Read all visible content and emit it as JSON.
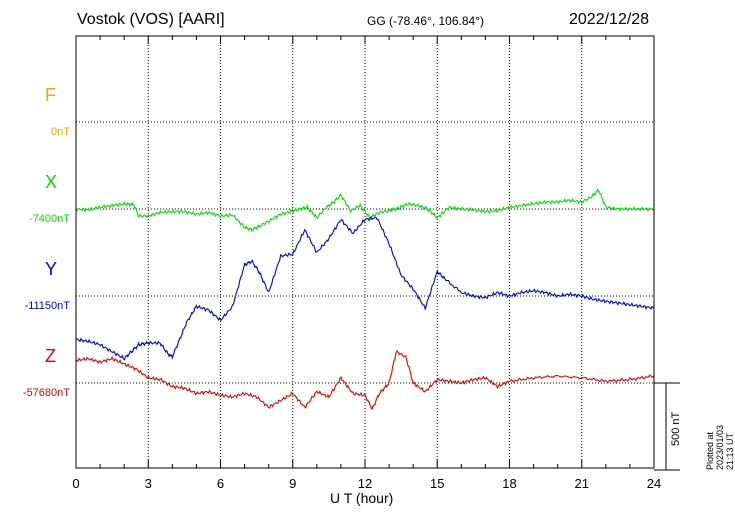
{
  "header": {
    "station": "Vostok (VOS)  [AARI]",
    "coordinates": "GG (-78.46°, 106.84°)",
    "date": "2022/12/28"
  },
  "footer": {
    "plotted": "Plotted at 2023/01/03 21:13 UT",
    "scale_label": "500 nT"
  },
  "chart_data": {
    "type": "line",
    "xlabel": "U T (hour)",
    "xlim": [
      0,
      24
    ],
    "xticks": [
      0,
      3,
      6,
      9,
      12,
      15,
      18,
      21,
      24
    ],
    "scale_bar_nT": 500,
    "series": [
      {
        "name": "F",
        "baseline": "0nT",
        "baseline_value": 0,
        "color": "#f5a500",
        "values": []
      },
      {
        "name": "X",
        "baseline": "-7400nT",
        "baseline_value": -7400,
        "color": "#00e000",
        "x": [
          0,
          0.5,
          1.0,
          1.5,
          2.0,
          2.4,
          2.6,
          3.0,
          3.5,
          4.0,
          4.5,
          5.0,
          5.5,
          6.0,
          6.5,
          7.0,
          7.3,
          7.6,
          8.0,
          8.5,
          9.0,
          9.3,
          9.6,
          10.0,
          10.4,
          10.7,
          11.0,
          11.4,
          11.8,
          12.2,
          12.6,
          13.0,
          13.4,
          13.8,
          14.2,
          14.6,
          15.0,
          15.5,
          16.0,
          16.5,
          17.0,
          17.5,
          18.0,
          18.5,
          19.0,
          19.5,
          20.0,
          20.5,
          21.0,
          21.4,
          21.7,
          22.0,
          22.5,
          23.0,
          23.5,
          24.0
        ],
        "values": [
          0,
          -5,
          10,
          20,
          30,
          25,
          -40,
          -40,
          -20,
          -15,
          -15,
          -30,
          -20,
          -40,
          -35,
          -105,
          -120,
          -100,
          -70,
          -30,
          -10,
          0,
          10,
          -50,
          10,
          40,
          80,
          -10,
          20,
          -50,
          -20,
          -10,
          5,
          30,
          20,
          0,
          -50,
          10,
          0,
          -5,
          -15,
          -10,
          10,
          20,
          30,
          40,
          40,
          50,
          40,
          70,
          110,
          10,
          0,
          0,
          0,
          0
        ]
      },
      {
        "name": "Y",
        "baseline": "-11150nT",
        "baseline_value": -11150,
        "color": "#0000e6",
        "x": [
          0,
          0.5,
          1.0,
          1.5,
          2.0,
          2.3,
          2.6,
          3.0,
          3.5,
          3.8,
          4.0,
          4.3,
          4.6,
          5.0,
          5.5,
          6.0,
          6.5,
          7.0,
          7.3,
          7.6,
          8.0,
          8.5,
          9.0,
          9.5,
          10.0,
          10.5,
          11.0,
          11.5,
          12.0,
          12.5,
          13.0,
          13.5,
          14.0,
          14.5,
          15.0,
          15.3,
          16.0,
          16.5,
          17.0,
          17.5,
          18.0,
          18.5,
          19.0,
          19.5,
          20.0,
          20.5,
          21.0,
          21.5,
          22.0,
          22.5,
          23.0,
          23.5,
          24.0
        ],
        "values": [
          -250,
          -260,
          -280,
          -320,
          -360,
          -320,
          -280,
          -270,
          -270,
          -330,
          -350,
          -250,
          -150,
          -60,
          -80,
          -140,
          -60,
          180,
          200,
          140,
          20,
          230,
          240,
          380,
          250,
          330,
          440,
          360,
          440,
          450,
          300,
          120,
          40,
          -70,
          140,
          100,
          20,
          0,
          -10,
          20,
          0,
          20,
          30,
          20,
          0,
          10,
          0,
          -20,
          -30,
          -40,
          -50,
          -60,
          -70
        ]
      },
      {
        "name": "Z",
        "baseline": "-57680nT",
        "baseline_value": -57680,
        "color": "#e60000",
        "x": [
          0,
          0.5,
          1.0,
          1.5,
          2.0,
          2.5,
          3.0,
          3.5,
          4.0,
          4.5,
          5.0,
          5.5,
          6.0,
          6.5,
          7.0,
          7.5,
          8.0,
          8.5,
          9.0,
          9.5,
          10.0,
          10.5,
          11.0,
          11.5,
          12.0,
          12.3,
          12.6,
          13.0,
          13.3,
          13.7,
          14.0,
          14.5,
          15.0,
          15.5,
          16.0,
          16.5,
          17.0,
          17.5,
          18.0,
          19.0,
          20.0,
          21.0,
          22.0,
          23.0,
          24.0
        ],
        "values": [
          130,
          140,
          120,
          140,
          110,
          80,
          30,
          20,
          -20,
          -30,
          -60,
          -50,
          -70,
          -80,
          -60,
          -80,
          -140,
          -100,
          -60,
          -140,
          -50,
          -80,
          30,
          -60,
          -70,
          -150,
          -60,
          0,
          180,
          150,
          0,
          -50,
          20,
          10,
          0,
          20,
          30,
          -20,
          10,
          30,
          40,
          30,
          10,
          20,
          40
        ]
      }
    ]
  }
}
